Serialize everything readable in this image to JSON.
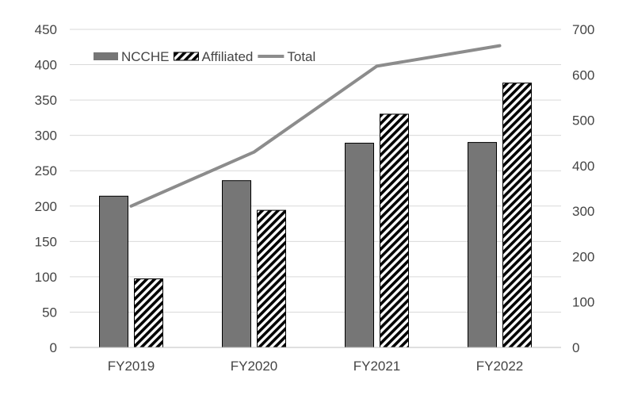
{
  "chart_data": {
    "type": "bar",
    "categories": [
      "FY2019",
      "FY2020",
      "FY2021",
      "FY2022"
    ],
    "series": [
      {
        "name": "NCCHE",
        "type": "bar",
        "axis": "left",
        "values": [
          214,
          236,
          289,
          290
        ],
        "color": "#767676",
        "pattern": "solid"
      },
      {
        "name": "Affiliated",
        "type": "bar",
        "axis": "left",
        "values": [
          97,
          194,
          330,
          374
        ],
        "color": "#000000",
        "pattern": "diagonal-hatch"
      },
      {
        "name": "Total",
        "type": "line",
        "axis": "right",
        "values": [
          311,
          430,
          619,
          664
        ],
        "color": "#8c8c8c"
      }
    ],
    "y_left": {
      "min": 0,
      "max": 450,
      "ticks": [
        0,
        50,
        100,
        150,
        200,
        250,
        300,
        350,
        400,
        450
      ]
    },
    "y_right": {
      "min": 0,
      "max": 700,
      "ticks": [
        0,
        100,
        200,
        300,
        400,
        500,
        600,
        700
      ]
    },
    "grid": true,
    "legend_position": "top-left"
  }
}
